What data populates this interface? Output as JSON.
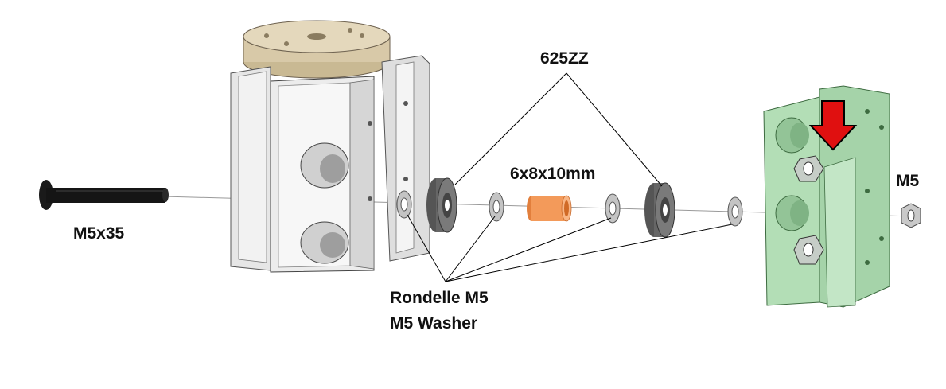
{
  "labels": {
    "bolt": "M5x35",
    "bearing": "625ZZ",
    "spacer": "6x8x10mm",
    "nut": "M5",
    "washer_fr": "Rondelle M5",
    "washer_en": "M5 Washer"
  },
  "colors": {
    "bolt": "#111111",
    "bearing": "#6b6b6b",
    "spacer": "#f39a5a",
    "green_part": "#a9d9ad",
    "gray_part": "#e4e4e4",
    "tan_pulley": "#d8c9a8",
    "arrow": "#e01010"
  },
  "icons": {
    "arrow": "down-arrow-icon"
  }
}
